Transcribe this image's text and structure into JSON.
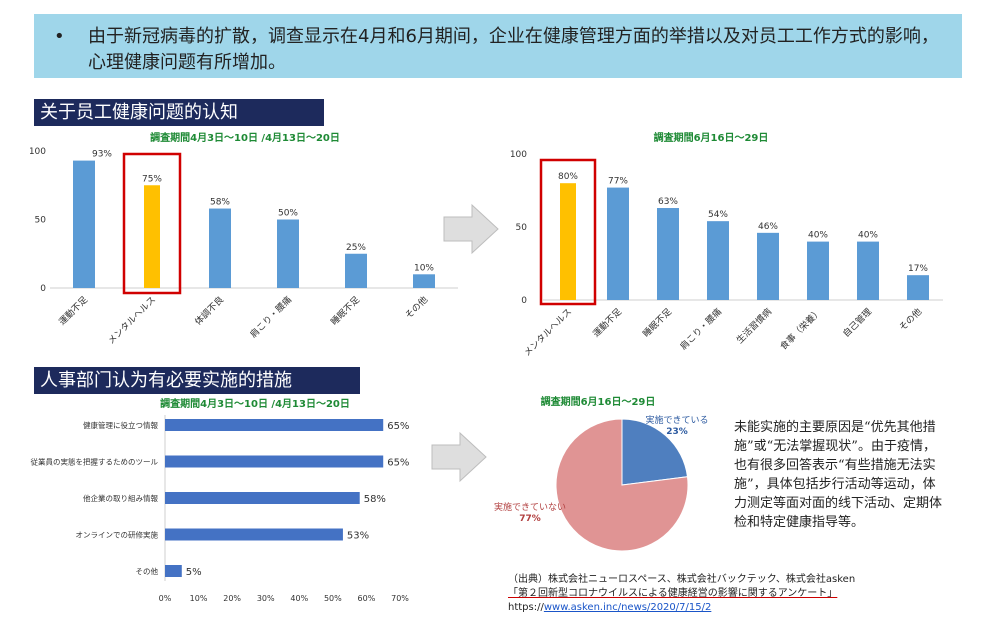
{
  "banner": {
    "bullet": "•",
    "text": "由于新冠病毒的扩散，调查显示在4月和6月期间，企业在健康管理方面的举措以及对员工工作方式的影响，心理健康问题有所增加。"
  },
  "section1_title": "关于员工健康问题的认知",
  "section2_title": "人事部门认为有必要实施的措施",
  "note": "未能实施的主要原因是“优先其他措施”或“无法掌握现状”。由于疫情，也有很多回答表示“有些措施无法实施”，具体包括步行活动等运动，体力测定等面对面的线下活动、定期体检和特定健康指导等。",
  "source": {
    "line1": "（出典）株式会社ニューロスペース、株式会社バックテック、株式会社asken",
    "line2": "「第２回新型コロナウイルスによる健康経営の影響に関するアンケート」",
    "line3_prefix": "https://",
    "line3_link": "www.asken.inc/news/2020/7/15/2"
  },
  "colors": {
    "bar": "#5b9bd5",
    "highlight_bar": "#ffc000",
    "highlight_box": "#d00000",
    "hbar": "#4472c4",
    "pie_a": "#4f7fbf",
    "pie_b": "#e09494"
  },
  "chart_data": [
    {
      "type": "bar",
      "title": "調査期間4月3日～10日 /4月13日～20日",
      "categories": [
        "運動不足",
        "メンタルヘルス",
        "体調不良",
        "肩こり・腰痛",
        "睡眠不足",
        "その他"
      ],
      "values": [
        93,
        75,
        58,
        50,
        25,
        10
      ],
      "value_labels": [
        "93%",
        "75%",
        "58%",
        "50%",
        "25%",
        "10%"
      ],
      "highlight_index": 1,
      "yticks": [
        "100",
        "50",
        "0"
      ],
      "ylim": [
        0,
        100
      ]
    },
    {
      "type": "bar",
      "title": "調査期間6月16日～29日",
      "categories": [
        "メンタルヘルス",
        "運動不足",
        "睡眠不足",
        "肩こり・腰痛",
        "生活習慣病",
        "食事（栄養）",
        "自己管理",
        "その他"
      ],
      "values": [
        80,
        77,
        63,
        54,
        46,
        40,
        40,
        17
      ],
      "value_labels": [
        "80%",
        "77%",
        "63%",
        "54%",
        "46%",
        "40%",
        "40%",
        "17%"
      ],
      "highlight_index": 0,
      "yticks": [
        "100",
        "50",
        "0"
      ],
      "ylim": [
        0,
        100
      ]
    },
    {
      "type": "bar",
      "orientation": "horizontal",
      "title": "調査期間4月3日～10日 /4月13日～20日",
      "categories": [
        "健康管理に役立つ情報",
        "従業員の実態を把握するためのツール",
        "他企業の取り組み情報",
        "オンラインでの研修実施",
        "その他"
      ],
      "values": [
        65,
        65,
        58,
        53,
        5
      ],
      "value_labels": [
        "65%",
        "65%",
        "58%",
        "53%",
        "5%"
      ],
      "xticks": [
        "0%",
        "10%",
        "20%",
        "30%",
        "40%",
        "50%",
        "60%",
        "70%"
      ],
      "xlim": [
        0,
        70
      ]
    },
    {
      "type": "pie",
      "title": "調査期間6月16日～29日",
      "slices": [
        {
          "label": "実施できている",
          "value": 23,
          "value_label": "23%"
        },
        {
          "label": "実施できていない",
          "value": 77,
          "value_label": "77%"
        }
      ]
    }
  ]
}
